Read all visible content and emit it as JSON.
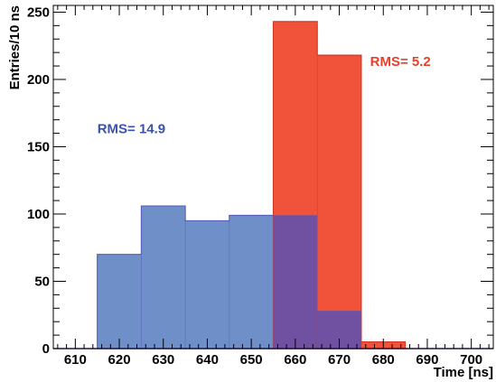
{
  "chart_data": {
    "type": "histogram",
    "xlabel": "Time [ns]",
    "ylabel": "Entries/10 ns",
    "xlim": [
      605,
      705
    ],
    "ylim": [
      0,
      255
    ],
    "x_ticks": [
      610,
      620,
      630,
      640,
      650,
      660,
      670,
      680,
      690,
      700
    ],
    "y_ticks": [
      0,
      50,
      100,
      150,
      200,
      250
    ],
    "grid": false,
    "series": [
      {
        "color": "#6f8fc8",
        "edge_color": "#5a62b8",
        "bin_edges": [
          615,
          625,
          635,
          645,
          655,
          665,
          675
        ],
        "values": [
          70,
          106,
          95,
          99,
          99,
          28
        ]
      },
      {
        "color": "#f0523a",
        "edge_color": "#d03a2a",
        "bin_edges": [
          655,
          665,
          675,
          685
        ],
        "values": [
          243,
          218,
          5
        ]
      }
    ],
    "overlap_color": "#7050a0",
    "annotations": [
      {
        "text": "RMS=  14.9",
        "color": "#3a53a4",
        "x": 615,
        "y": 160
      },
      {
        "text": "RMS=  5.2",
        "color": "#e8402a",
        "x": 677,
        "y": 210
      }
    ]
  }
}
